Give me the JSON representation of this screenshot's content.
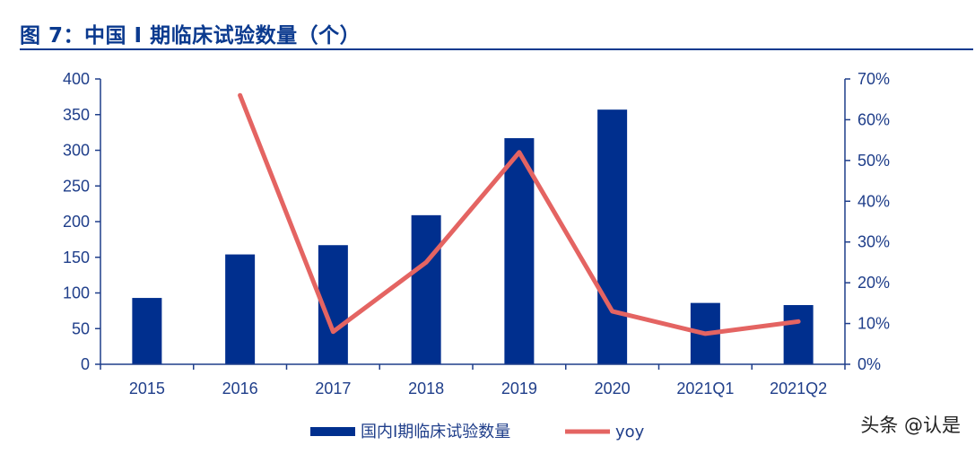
{
  "title": "图 7：中国 I 期临床试验数量（个）",
  "watermark": "头条 @认是",
  "colors": {
    "bar": "#002f8e",
    "line": "#e46462",
    "axis": "#1f3e8a",
    "title": "#0b3a8f"
  },
  "chart_data": {
    "type": "bar",
    "categories": [
      "2015",
      "2016",
      "2017",
      "2018",
      "2019",
      "2020",
      "2021Q1",
      "2021Q2"
    ],
    "series": [
      {
        "name": "国内I期临床试验数量",
        "type": "bar",
        "axis": "left",
        "values": [
          93,
          154,
          167,
          209,
          317,
          357,
          86,
          83
        ]
      },
      {
        "name": "yoy",
        "type": "line",
        "axis": "right",
        "values": [
          null,
          0.66,
          0.08,
          0.25,
          0.52,
          0.13,
          0.075,
          0.105
        ]
      }
    ],
    "y_left": {
      "min": 0,
      "max": 400,
      "ticks": [
        "0",
        "50",
        "100",
        "150",
        "200",
        "250",
        "300",
        "350",
        "400"
      ]
    },
    "y_right": {
      "min": 0,
      "max": 0.7,
      "ticks": [
        "0%",
        "10%",
        "20%",
        "30%",
        "40%",
        "50%",
        "60%",
        "70%"
      ]
    },
    "legend_position": "bottom-center",
    "grid": false
  }
}
